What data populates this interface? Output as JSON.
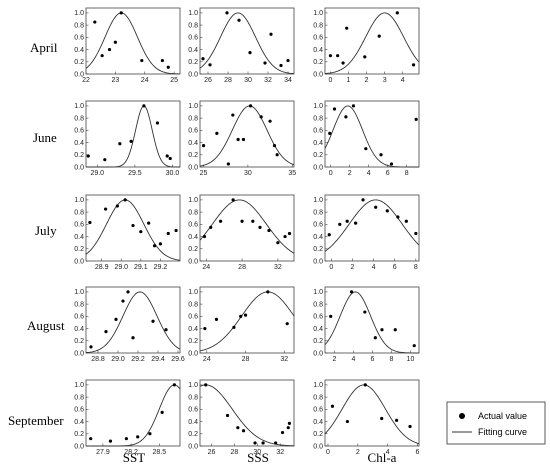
{
  "chart_data": {
    "type": "scatter",
    "title": "",
    "rows": [
      "April",
      "June",
      "July",
      "August",
      "September"
    ],
    "columns": [
      "SST",
      "SSS",
      "Chl-a"
    ],
    "legend": {
      "position": "bottom-right",
      "points_label": "Actual value",
      "curve_label": "Fitting curve"
    },
    "panels": [
      {
        "row": 0,
        "col": 0,
        "xlim": [
          22,
          25.2
        ],
        "ylim": [
          0,
          1.08
        ],
        "xticks": [
          "22",
          "23",
          "24",
          "25"
        ],
        "xtick_values": [
          22,
          23,
          24,
          25
        ],
        "yticks": [
          "0.0",
          "0.2",
          "0.4",
          "0.6",
          "0.8",
          "1.0"
        ],
        "ytick_values": [
          0,
          0.2,
          0.4,
          0.6,
          0.8,
          1.0
        ],
        "points": [
          [
            22.3,
            0.85
          ],
          [
            22.55,
            0.3
          ],
          [
            22.8,
            0.4
          ],
          [
            23.0,
            0.52
          ],
          [
            23.2,
            1.0
          ],
          [
            23.9,
            0.22
          ],
          [
            24.6,
            0.22
          ],
          [
            24.8,
            0.11
          ]
        ],
        "curve": {
          "mu": 23.2,
          "sigma": 0.55,
          "amp": 1.0,
          "base": 0
        }
      },
      {
        "row": 0,
        "col": 1,
        "xlim": [
          25.2,
          34.6
        ],
        "ylim": [
          0,
          1.08
        ],
        "xticks": [
          "26",
          "28",
          "30",
          "32",
          "34"
        ],
        "xtick_values": [
          26,
          28,
          30,
          32,
          34
        ],
        "yticks": [
          "0.0",
          "0.2",
          "0.4",
          "0.6",
          "0.8",
          "1.0"
        ],
        "ytick_values": [
          0,
          0.2,
          0.4,
          0.6,
          0.8,
          1.0
        ],
        "points": [
          [
            25.5,
            0.25
          ],
          [
            26.2,
            0.15
          ],
          [
            27.9,
            1.0
          ],
          [
            29.1,
            0.88
          ],
          [
            30.2,
            0.35
          ],
          [
            31.7,
            0.18
          ],
          [
            32.3,
            0.65
          ],
          [
            33.3,
            0.14
          ],
          [
            34.0,
            0.22
          ]
        ],
        "curve": {
          "mu": 29.0,
          "sigma": 1.75,
          "amp": 1.0,
          "base": 0
        }
      },
      {
        "row": 0,
        "col": 2,
        "xlim": [
          -0.3,
          4.9
        ],
        "ylim": [
          0,
          1.08
        ],
        "xticks": [
          "0",
          "1",
          "2",
          "3",
          "4"
        ],
        "xtick_values": [
          0,
          1,
          2,
          3,
          4
        ],
        "yticks": [
          "0.0",
          "0.2",
          "0.4",
          "0.6",
          "0.8",
          "1.0"
        ],
        "ytick_values": [
          0,
          0.2,
          0.4,
          0.6,
          0.8,
          1.0
        ],
        "points": [
          [
            0.0,
            0.3
          ],
          [
            0.4,
            0.3
          ],
          [
            0.7,
            0.18
          ],
          [
            0.9,
            0.75
          ],
          [
            1.9,
            0.28
          ],
          [
            2.7,
            0.62
          ],
          [
            3.7,
            1.0
          ],
          [
            4.6,
            0.15
          ]
        ],
        "curve": {
          "mu": 3.0,
          "sigma": 1.05,
          "amp": 1.0,
          "base": 0
        }
      },
      {
        "row": 1,
        "col": 0,
        "xlim": [
          28.85,
          30.1
        ],
        "ylim": [
          0,
          1.08
        ],
        "xticks": [
          "29.0",
          "29.5",
          "30.0"
        ],
        "xtick_values": [
          29.0,
          29.5,
          30.0
        ],
        "yticks": [
          "0.0",
          "0.2",
          "0.4",
          "0.6",
          "0.8",
          "1.0"
        ],
        "ytick_values": [
          0,
          0.2,
          0.4,
          0.6,
          0.8,
          1.0
        ],
        "points": [
          [
            28.88,
            0.18
          ],
          [
            29.1,
            0.12
          ],
          [
            29.3,
            0.38
          ],
          [
            29.45,
            0.42
          ],
          [
            29.62,
            1.0
          ],
          [
            29.8,
            0.72
          ],
          [
            29.93,
            0.18
          ],
          [
            29.97,
            0.14
          ]
        ],
        "curve": {
          "mu": 29.62,
          "sigma": 0.11,
          "amp": 1.0,
          "base": 0
        }
      },
      {
        "row": 1,
        "col": 1,
        "xlim": [
          24.6,
          35.2
        ],
        "ylim": [
          0,
          1.08
        ],
        "xticks": [
          "25",
          "30",
          "35"
        ],
        "xtick_values": [
          25,
          30,
          35
        ],
        "yticks": [
          "0.0",
          "0.2",
          "0.4",
          "0.6",
          "0.8",
          "1.0"
        ],
        "ytick_values": [
          0,
          0.2,
          0.4,
          0.6,
          0.8,
          1.0
        ],
        "points": [
          [
            25.0,
            0.35
          ],
          [
            26.5,
            0.55
          ],
          [
            27.8,
            0.05
          ],
          [
            28.3,
            0.85
          ],
          [
            28.9,
            0.45
          ],
          [
            29.5,
            0.45
          ],
          [
            30.3,
            1.0
          ],
          [
            31.5,
            0.82
          ],
          [
            32.5,
            0.75
          ],
          [
            33.0,
            0.35
          ],
          [
            33.3,
            0.2
          ]
        ],
        "curve": {
          "mu": 30.2,
          "sigma": 1.95,
          "amp": 1.0,
          "base": 0
        }
      },
      {
        "row": 1,
        "col": 2,
        "xlim": [
          -0.6,
          9.3
        ],
        "ylim": [
          0,
          1.08
        ],
        "xticks": [
          "0",
          "2",
          "4",
          "6",
          "8"
        ],
        "xtick_values": [
          0,
          2,
          4,
          6,
          8
        ],
        "yticks": [
          "0.0",
          "0.2",
          "0.4",
          "0.6",
          "0.8",
          "1.0"
        ],
        "ytick_values": [
          0,
          0.2,
          0.4,
          0.6,
          0.8,
          1.0
        ],
        "points": [
          [
            -0.1,
            0.55
          ],
          [
            0.4,
            0.95
          ],
          [
            1.6,
            0.82
          ],
          [
            2.4,
            1.0
          ],
          [
            3.7,
            0.3
          ],
          [
            5.3,
            0.2
          ],
          [
            6.4,
            0.05
          ],
          [
            9.0,
            0.78
          ]
        ],
        "curve": {
          "mu": 1.8,
          "sigma": 1.55,
          "amp": 1.0,
          "base": 0
        }
      },
      {
        "row": 2,
        "col": 0,
        "xlim": [
          28.82,
          29.3
        ],
        "ylim": [
          0,
          1.08
        ],
        "xticks": [
          "28.9",
          "29.0",
          "29.1",
          "29.2"
        ],
        "xtick_values": [
          28.9,
          29.0,
          29.1,
          29.2
        ],
        "yticks": [
          "0.0",
          "0.2",
          "0.4",
          "0.6",
          "0.8",
          "1.0"
        ],
        "ytick_values": [
          0,
          0.2,
          0.4,
          0.6,
          0.8,
          1.0
        ],
        "points": [
          [
            28.84,
            0.63
          ],
          [
            28.92,
            0.85
          ],
          [
            28.98,
            0.9
          ],
          [
            29.02,
            1.0
          ],
          [
            29.06,
            0.58
          ],
          [
            29.1,
            0.48
          ],
          [
            29.14,
            0.62
          ],
          [
            29.17,
            0.25
          ],
          [
            29.2,
            0.28
          ],
          [
            29.24,
            0.45
          ],
          [
            29.28,
            0.5
          ]
        ],
        "curve": {
          "mu": 29.02,
          "sigma": 0.095,
          "amp": 1.0,
          "base": 0
        }
      },
      {
        "row": 2,
        "col": 1,
        "xlim": [
          23.3,
          33.8
        ],
        "ylim": [
          0,
          1.08
        ],
        "xticks": [
          "24",
          "28",
          "32"
        ],
        "xtick_values": [
          24,
          28,
          32
        ],
        "yticks": [
          "0.0",
          "0.2",
          "0.4",
          "0.6",
          "0.8",
          "1.0"
        ],
        "ytick_values": [
          0,
          0.2,
          0.4,
          0.6,
          0.8,
          1.0
        ],
        "points": [
          [
            23.8,
            0.4
          ],
          [
            24.5,
            0.55
          ],
          [
            25.6,
            0.65
          ],
          [
            27.0,
            1.0
          ],
          [
            28.0,
            0.65
          ],
          [
            29.2,
            0.65
          ],
          [
            30.0,
            0.55
          ],
          [
            31.0,
            0.5
          ],
          [
            32.0,
            0.3
          ],
          [
            32.8,
            0.4
          ],
          [
            33.3,
            0.45
          ]
        ],
        "curve": {
          "mu": 27.7,
          "sigma": 3.0,
          "amp": 1.0,
          "base": 0
        }
      },
      {
        "row": 2,
        "col": 2,
        "xlim": [
          -0.6,
          8.3
        ],
        "ylim": [
          0,
          1.08
        ],
        "xticks": [
          "0",
          "2",
          "4",
          "6",
          "8"
        ],
        "xtick_values": [
          0,
          2,
          4,
          6,
          8
        ],
        "yticks": [
          "0.0",
          "0.2",
          "0.4",
          "0.6",
          "0.8",
          "1.0"
        ],
        "ytick_values": [
          0,
          0.2,
          0.4,
          0.6,
          0.8,
          1.0
        ],
        "points": [
          [
            -0.2,
            0.43
          ],
          [
            0.8,
            0.6
          ],
          [
            1.5,
            0.65
          ],
          [
            2.3,
            0.62
          ],
          [
            3.0,
            1.0
          ],
          [
            4.2,
            0.88
          ],
          [
            5.3,
            0.82
          ],
          [
            6.3,
            0.72
          ],
          [
            7.1,
            0.65
          ],
          [
            8.0,
            0.45
          ]
        ],
        "curve": {
          "mu": 4.2,
          "sigma": 2.5,
          "amp": 1.0,
          "base": 0
        }
      },
      {
        "row": 3,
        "col": 0,
        "xlim": [
          28.68,
          29.62
        ],
        "ylim": [
          0,
          1.08
        ],
        "xticks": [
          "28.8",
          "29.0",
          "29.2",
          "29.4",
          "29.6"
        ],
        "xtick_values": [
          28.8,
          29.0,
          29.2,
          29.4,
          29.6
        ],
        "yticks": [
          "0.0",
          "0.2",
          "0.4",
          "0.6",
          "0.8",
          "1.0"
        ],
        "ytick_values": [
          0,
          0.2,
          0.4,
          0.6,
          0.8,
          1.0
        ],
        "points": [
          [
            28.73,
            0.1
          ],
          [
            28.88,
            0.35
          ],
          [
            28.98,
            0.55
          ],
          [
            29.05,
            0.85
          ],
          [
            29.1,
            1.0
          ],
          [
            29.15,
            0.25
          ],
          [
            29.35,
            0.52
          ],
          [
            29.48,
            0.38
          ]
        ],
        "curve": {
          "mu": 29.22,
          "sigma": 0.17,
          "amp": 1.0,
          "base": 0
        }
      },
      {
        "row": 3,
        "col": 1,
        "xlim": [
          23.3,
          33.0
        ],
        "ylim": [
          0,
          1.08
        ],
        "xticks": [
          "24",
          "28",
          "32"
        ],
        "xtick_values": [
          24,
          28,
          32
        ],
        "yticks": [
          "0.0",
          "0.2",
          "0.4",
          "0.6",
          "0.8",
          "1.0"
        ],
        "ytick_values": [
          0,
          0.2,
          0.4,
          0.6,
          0.8,
          1.0
        ],
        "points": [
          [
            23.8,
            0.4
          ],
          [
            25.0,
            0.55
          ],
          [
            26.8,
            0.42
          ],
          [
            27.5,
            0.6
          ],
          [
            28.0,
            0.62
          ],
          [
            30.3,
            1.0
          ],
          [
            32.3,
            0.48
          ]
        ],
        "curve": {
          "mu": 30.3,
          "sigma": 2.7,
          "amp": 1.0,
          "base": 0
        }
      },
      {
        "row": 3,
        "col": 2,
        "xlim": [
          1.0,
          10.9
        ],
        "ylim": [
          0,
          1.08
        ],
        "xticks": [
          "2",
          "4",
          "6",
          "8",
          "10"
        ],
        "xtick_values": [
          2,
          4,
          6,
          8,
          10
        ],
        "yticks": [
          "0.0",
          "0.2",
          "0.4",
          "0.6",
          "0.8",
          "1.0"
        ],
        "ytick_values": [
          0,
          0.2,
          0.4,
          0.6,
          0.8,
          1.0
        ],
        "points": [
          [
            1.6,
            0.6
          ],
          [
            3.8,
            1.0
          ],
          [
            5.2,
            0.67
          ],
          [
            6.3,
            0.25
          ],
          [
            7.0,
            0.38
          ],
          [
            8.4,
            0.38
          ],
          [
            10.4,
            0.12
          ]
        ],
        "curve": {
          "mu": 4.2,
          "sigma": 1.6,
          "amp": 1.0,
          "base": 0
        }
      },
      {
        "row": 4,
        "col": 0,
        "xlim": [
          27.72,
          28.72
        ],
        "ylim": [
          0,
          1.08
        ],
        "xticks": [
          "27.9",
          "28.2",
          "28.5"
        ],
        "xtick_values": [
          27.9,
          28.2,
          28.5
        ],
        "yticks": [
          "0.0",
          "0.2",
          "0.4",
          "0.6",
          "0.8",
          "1.0"
        ],
        "ytick_values": [
          0,
          0.2,
          0.4,
          0.6,
          0.8,
          1.0
        ],
        "points": [
          [
            27.77,
            0.12
          ],
          [
            27.98,
            0.08
          ],
          [
            28.15,
            0.12
          ],
          [
            28.27,
            0.15
          ],
          [
            28.4,
            0.2
          ],
          [
            28.53,
            0.55
          ],
          [
            28.66,
            1.0
          ]
        ],
        "curve": {
          "mu": 28.66,
          "sigma": 0.16,
          "amp": 1.0,
          "base": 0
        }
      },
      {
        "row": 4,
        "col": 1,
        "xlim": [
          25.0,
          33.2
        ],
        "ylim": [
          0,
          1.08
        ],
        "xticks": [
          "26",
          "28",
          "30",
          "32"
        ],
        "xtick_values": [
          26,
          28,
          30,
          32
        ],
        "yticks": [
          "0.0",
          "0.2",
          "0.4",
          "0.6",
          "0.8",
          "1.0"
        ],
        "ytick_values": [
          0,
          0.2,
          0.4,
          0.6,
          0.8,
          1.0
        ],
        "points": [
          [
            25.5,
            1.0
          ],
          [
            27.4,
            0.5
          ],
          [
            28.3,
            0.3
          ],
          [
            28.8,
            0.25
          ],
          [
            29.8,
            0.05
          ],
          [
            30.5,
            0.05
          ],
          [
            31.6,
            0.05
          ],
          [
            32.2,
            0.22
          ],
          [
            32.7,
            0.3
          ],
          [
            32.8,
            0.37
          ]
        ],
        "curve": {
          "mu": 25.5,
          "sigma": 2.3,
          "amp": 1.0,
          "base": 0
        }
      },
      {
        "row": 4,
        "col": 2,
        "xlim": [
          -0.2,
          6.1
        ],
        "ylim": [
          0,
          1.08
        ],
        "xticks": [
          "0",
          "2",
          "4",
          "6"
        ],
        "xtick_values": [
          0,
          2,
          4,
          6
        ],
        "yticks": [
          "0.0",
          "0.2",
          "0.4",
          "0.6",
          "0.8",
          "1.0"
        ],
        "ytick_values": [
          0,
          0.2,
          0.4,
          0.6,
          0.8,
          1.0
        ],
        "points": [
          [
            0.3,
            0.65
          ],
          [
            1.3,
            0.4
          ],
          [
            2.5,
            1.0
          ],
          [
            3.6,
            0.45
          ],
          [
            4.6,
            0.42
          ],
          [
            5.5,
            0.32
          ]
        ],
        "curve": {
          "mu": 2.4,
          "sigma": 1.45,
          "amp": 1.0,
          "base": 0
        }
      }
    ]
  }
}
